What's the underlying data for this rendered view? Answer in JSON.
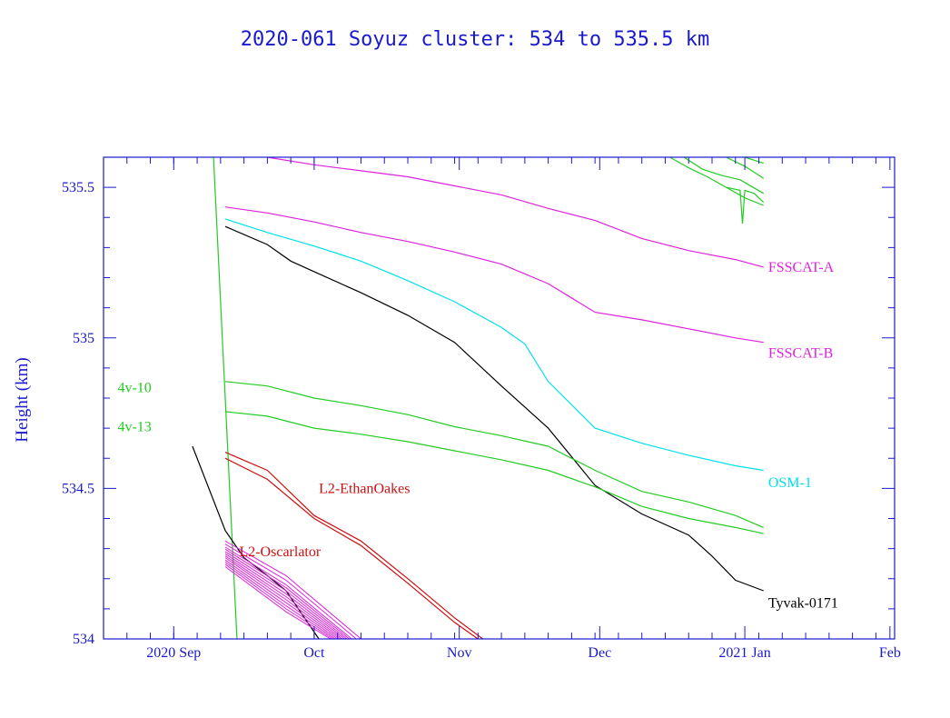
{
  "chart_data": {
    "type": "line",
    "title": "2020-061 Soyuz cluster: 534 to 535.5 km",
    "xlabel": "",
    "ylabel": "Height (km)",
    "x_unit": "days since 2020-09-01",
    "xlim": [
      -15,
      154
    ],
    "ylim": [
      534,
      535.6
    ],
    "y_ticks": [
      534,
      534.5,
      535,
      535.5
    ],
    "y_tick_labels": [
      "534",
      "534.5",
      "535",
      "535.5"
    ],
    "y_minor_step": 0.1,
    "x_ticks": [
      0,
      30,
      61,
      91,
      122,
      153
    ],
    "x_tick_labels": [
      "2020 Sep",
      "Oct",
      "Nov",
      "Dec",
      "2021 Jan",
      "Feb"
    ],
    "x_minor_step": 5,
    "colors": {
      "axis": "#1a1acc",
      "magenta": "#dd22dd",
      "cyan": "#00e0ee",
      "green": "#22cc22",
      "red": "#cc1111",
      "black": "#000000"
    },
    "series": [
      {
        "name": "FSSCAT-A",
        "color": "magenta",
        "x": [
          20,
          30,
          40,
          50,
          60,
          70,
          80,
          90,
          100,
          110,
          120,
          126
        ],
        "y": [
          535.6,
          535.575,
          535.555,
          535.535,
          535.505,
          535.475,
          535.43,
          535.39,
          535.33,
          535.29,
          535.26,
          535.235
        ]
      },
      {
        "name": "FSSCAT-B",
        "color": "magenta",
        "x": [
          11,
          20,
          30,
          40,
          50,
          60,
          70,
          80,
          90,
          100,
          110,
          120,
          126
        ],
        "y": [
          535.435,
          535.415,
          535.385,
          535.35,
          535.32,
          535.285,
          535.245,
          535.18,
          535.085,
          535.06,
          535.03,
          535.0,
          534.985
        ]
      },
      {
        "name": "OSM-1",
        "color": "cyan",
        "x": [
          11,
          20,
          30,
          40,
          50,
          60,
          70,
          75,
          80,
          90,
          100,
          110,
          120,
          126
        ],
        "y": [
          535.395,
          535.35,
          535.305,
          535.255,
          535.19,
          535.12,
          535.035,
          534.98,
          534.855,
          534.7,
          534.65,
          534.61,
          534.575,
          534.56
        ]
      },
      {
        "name": "Tyvak-0171",
        "color": "black",
        "x": [
          11,
          20,
          25,
          30,
          40,
          50,
          60,
          70,
          80,
          90,
          100,
          110,
          115,
          120,
          126
        ],
        "y": [
          535.37,
          535.31,
          535.255,
          535.22,
          535.15,
          535.075,
          534.985,
          534.84,
          534.7,
          534.51,
          534.415,
          534.345,
          534.275,
          534.195,
          534.16
        ]
      },
      {
        "name": "4v-10",
        "color": "green",
        "x": [
          11,
          20,
          30,
          40,
          50,
          60,
          70,
          80,
          90,
          100,
          110,
          120,
          126
        ],
        "y": [
          534.855,
          534.84,
          534.8,
          534.775,
          534.745,
          534.705,
          534.675,
          534.64,
          534.56,
          534.49,
          534.455,
          534.41,
          534.37
        ]
      },
      {
        "name": "4v-13",
        "color": "green",
        "x": [
          11,
          20,
          30,
          40,
          50,
          60,
          70,
          80,
          90,
          100,
          110,
          120,
          126
        ],
        "y": [
          534.755,
          534.74,
          534.7,
          534.68,
          534.655,
          534.625,
          534.595,
          534.56,
          534.505,
          534.44,
          534.4,
          534.37,
          534.35
        ]
      },
      {
        "name": "L2-EthanOakes",
        "color": "red",
        "x": [
          11,
          20,
          30,
          40,
          50,
          60,
          66
        ],
        "y": [
          534.62,
          534.56,
          534.41,
          534.325,
          534.2,
          534.07,
          534.0
        ]
      },
      {
        "name": "L2-EthanOakes (2)",
        "color": "red",
        "x": [
          11,
          20,
          30,
          40,
          50,
          60,
          65
        ],
        "y": [
          534.6,
          534.53,
          534.4,
          534.31,
          534.185,
          534.055,
          534.0
        ]
      }
    ],
    "annotations": [
      {
        "text": "FSSCAT-A",
        "color": "magenta",
        "x": 127,
        "y": 535.235
      },
      {
        "text": "FSSCAT-B",
        "color": "magenta",
        "x": 127,
        "y": 534.95
      },
      {
        "text": "OSM-1",
        "color": "cyan",
        "x": 127,
        "y": 534.52
      },
      {
        "text": "Tyvak-0171",
        "color": "black",
        "x": 127,
        "y": 534.12
      },
      {
        "text": "4v-10",
        "color": "green",
        "x": -12,
        "y": 534.835
      },
      {
        "text": "4v-13",
        "color": "green",
        "x": -12,
        "y": 534.705
      },
      {
        "text": "L2-EthanOakes",
        "color": "red",
        "x": 31,
        "y": 534.5
      },
      {
        "text": "L2-Oscarlator",
        "color": "red",
        "x": 14,
        "y": 534.29
      }
    ]
  },
  "decorative_traces": {
    "green_steep": {
      "color": "green",
      "x": [
        8.5,
        13.5
      ],
      "y": [
        535.6,
        534.0
      ]
    },
    "black_early": {
      "color": "black",
      "x": [
        4,
        11,
        15,
        20,
        24,
        31
      ],
      "y": [
        534.64,
        534.36,
        534.27,
        534.21,
        534.16,
        534.0
      ]
    },
    "green_upper": [
      {
        "color": "green",
        "x": [
          106,
          110,
          114,
          118,
          122,
          126
        ],
        "y": [
          535.6,
          535.565,
          535.535,
          535.5,
          535.465,
          535.44
        ]
      },
      {
        "color": "green",
        "x": [
          109,
          113,
          117,
          121,
          126
        ],
        "y": [
          535.6,
          535.56,
          535.54,
          535.525,
          535.48
        ]
      },
      {
        "color": "green",
        "x": [
          118,
          122,
          126
        ],
        "y": [
          535.6,
          535.57,
          535.53
        ]
      },
      {
        "color": "green",
        "x": [
          118,
          121,
          121.5,
          122,
          124,
          126
        ],
        "y": [
          535.5,
          535.49,
          535.38,
          535.49,
          535.48,
          535.45
        ]
      },
      {
        "color": "green",
        "x": [
          122,
          124,
          126
        ],
        "y": [
          535.6,
          535.59,
          535.58
        ]
      }
    ],
    "oscarlator_bundle": {
      "color": "magenta",
      "count": 12,
      "start_x": 11,
      "start_y": [
        534.325,
        534.315,
        534.305,
        534.298,
        534.29,
        534.283,
        534.276,
        534.27,
        534.262,
        534.255,
        534.248,
        534.24
      ],
      "end_x": [
        40,
        39,
        38,
        37.5,
        37,
        36.5,
        36,
        35.5,
        35,
        34.5,
        34,
        33.5
      ],
      "mid_x": 24,
      "mid_y": [
        534.21,
        534.195,
        534.18,
        534.17,
        534.16,
        534.15,
        534.14,
        534.13,
        534.12,
        534.11,
        534.1,
        534.09
      ]
    }
  }
}
